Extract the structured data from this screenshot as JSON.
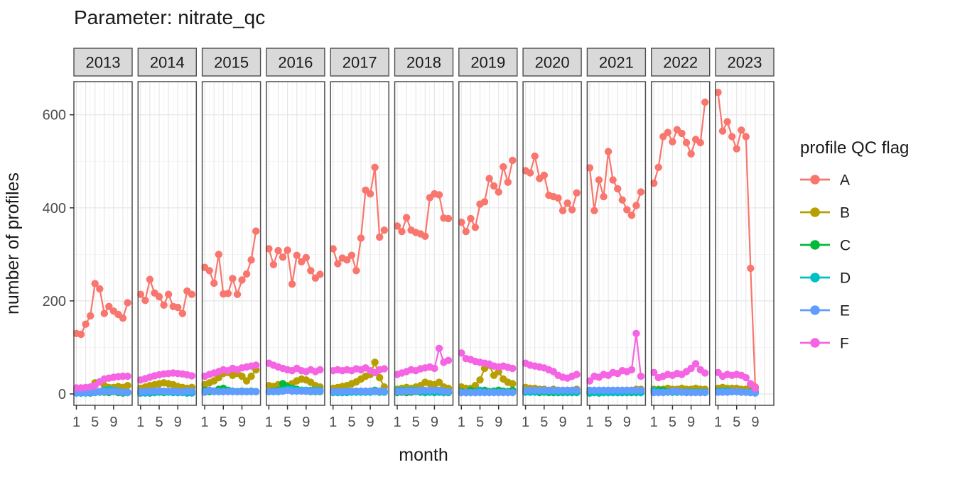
{
  "title": "Parameter:  nitrate_qc",
  "axes": {
    "y_label": "number of profiles",
    "x_label": "month",
    "y_tick_labels": [
      "0",
      "200",
      "400",
      "600"
    ],
    "x_tick_labels": [
      "1",
      "5",
      "9"
    ]
  },
  "legend": {
    "title": "profile QC flag",
    "entries": [
      {
        "label": "A",
        "color": "#F8766D"
      },
      {
        "label": "B",
        "color": "#B79F00"
      },
      {
        "label": "C",
        "color": "#00BA38"
      },
      {
        "label": "D",
        "color": "#00BFC4"
      },
      {
        "label": "E",
        "color": "#619CFF"
      },
      {
        "label": "F",
        "color": "#F564E3"
      }
    ]
  },
  "style_colors": {
    "strip_fill": "#D9D9D9",
    "panel_border": "#4D4D4D",
    "grid_major": "#E5E5E5",
    "grid_minor": "#F2F2F2",
    "tick_text": "#4D4D4D",
    "text": "#1A1A1A"
  },
  "chart_data": {
    "type": "line",
    "title": "Parameter:  nitrate_qc",
    "xlabel": "month",
    "ylabel": "number of profiles",
    "facet_by": "year",
    "facets": [
      "2013",
      "2014",
      "2015",
      "2016",
      "2017",
      "2018",
      "2019",
      "2020",
      "2021",
      "2022",
      "2023"
    ],
    "x_breaks": [
      1,
      5,
      9
    ],
    "y_breaks": [
      0,
      200,
      400,
      600
    ],
    "y_minor_breaks": [
      100,
      300,
      500
    ],
    "xlim": [
      1,
      12
    ],
    "ylim": [
      -20,
      672
    ],
    "grid": true,
    "legend_position": "right",
    "series": [
      {
        "name": "A",
        "color": "#F8766D",
        "data": {
          "2013": [
            130,
            128,
            150,
            168,
            237,
            226,
            173,
            188,
            178,
            171,
            163,
            196
          ],
          "2014": [
            214,
            201,
            246,
            217,
            209,
            191,
            214,
            188,
            186,
            173,
            221,
            214
          ],
          "2015": [
            272,
            265,
            238,
            300,
            215,
            216,
            248,
            214,
            245,
            258,
            288,
            350
          ],
          "2016": [
            312,
            278,
            308,
            294,
            309,
            236,
            298,
            284,
            293,
            265,
            249,
            257
          ],
          "2017": [
            312,
            280,
            292,
            288,
            298,
            265,
            335,
            438,
            430,
            487,
            337,
            352
          ],
          "2018": [
            361,
            349,
            379,
            352,
            347,
            344,
            339,
            422,
            430,
            428,
            378,
            377
          ],
          "2019": [
            369,
            349,
            377,
            358,
            408,
            413,
            463,
            447,
            434,
            488,
            455,
            502
          ],
          "2020": [
            480,
            475,
            511,
            463,
            470,
            427,
            424,
            421,
            394,
            410,
            396,
            432
          ],
          "2021": [
            486,
            394,
            460,
            424,
            521,
            460,
            441,
            417,
            396,
            384,
            405,
            434
          ],
          "2022": [
            453,
            487,
            553,
            562,
            542,
            568,
            560,
            540,
            516,
            547,
            540,
            627
          ],
          "2023": [
            648,
            565,
            585,
            553,
            527,
            567,
            553,
            270,
            15
          ]
        }
      },
      {
        "name": "B",
        "color": "#B79F00",
        "data": {
          "2013": [
            6,
            8,
            10,
            14,
            24,
            26,
            18,
            14,
            14,
            16,
            14,
            18
          ],
          "2014": [
            12,
            15,
            18,
            20,
            22,
            24,
            22,
            20,
            16,
            14,
            12,
            14
          ],
          "2015": [
            20,
            24,
            28,
            35,
            44,
            46,
            40,
            44,
            38,
            28,
            38,
            52
          ],
          "2016": [
            18,
            16,
            20,
            22,
            18,
            22,
            28,
            32,
            30,
            25,
            18,
            15
          ],
          "2017": [
            12,
            14,
            16,
            18,
            22,
            26,
            32,
            38,
            42,
            68,
            35,
            15
          ],
          "2018": [
            10,
            12,
            14,
            12,
            15,
            18,
            25,
            22,
            20,
            25,
            15,
            12
          ],
          "2019": [
            15,
            12,
            12,
            18,
            30,
            55,
            62,
            40,
            48,
            32,
            25,
            22
          ],
          "2020": [
            14,
            12,
            12,
            10,
            10,
            8,
            10,
            8,
            6,
            8,
            8,
            10
          ],
          "2021": [
            5,
            5,
            6,
            5,
            6,
            5,
            6,
            5,
            8,
            8,
            10,
            10
          ],
          "2022": [
            10,
            10,
            10,
            12,
            10,
            10,
            12,
            10,
            10,
            12,
            10,
            10
          ],
          "2023": [
            12,
            14,
            12,
            12,
            12,
            10,
            10,
            18,
            5
          ]
        }
      },
      {
        "name": "C",
        "color": "#00BA38",
        "data": {
          "2013": [
            3,
            2,
            3,
            2,
            4,
            5,
            4,
            3,
            5,
            3,
            2,
            3
          ],
          "2014": [
            2,
            3,
            2,
            3,
            4,
            3,
            5,
            5,
            3,
            4,
            2,
            3
          ],
          "2015": [
            8,
            5,
            6,
            10,
            12,
            8,
            6,
            5,
            6,
            5,
            6,
            5
          ],
          "2016": [
            5,
            6,
            8,
            22,
            15,
            12,
            10,
            8,
            6,
            5,
            5,
            5
          ],
          "2017": [
            5,
            4,
            5,
            5,
            5,
            5,
            5,
            5,
            5,
            8,
            5,
            5
          ],
          "2018": [
            3,
            4,
            3,
            4,
            5,
            4,
            3,
            4,
            3,
            4,
            3,
            3
          ],
          "2019": [
            5,
            3,
            8,
            5,
            6,
            8,
            5,
            6,
            8,
            6,
            5,
            8
          ],
          "2020": [
            5,
            4,
            5,
            3,
            4,
            3,
            3,
            3,
            3,
            3,
            3,
            3
          ],
          "2021": [
            2,
            3,
            2,
            3,
            3,
            3,
            3,
            3,
            3,
            3,
            3,
            3
          ],
          "2022": [
            5,
            8,
            8,
            5,
            4,
            4,
            4,
            4,
            4,
            4,
            4,
            4
          ],
          "2023": [
            6,
            5,
            6,
            5,
            5,
            4,
            4,
            4,
            3
          ]
        }
      },
      {
        "name": "D",
        "color": "#00BFC4",
        "data": {
          "2013": [
            2,
            2,
            2,
            3,
            3,
            4,
            8,
            9,
            8,
            6,
            4,
            3
          ],
          "2014": [
            2,
            2,
            3,
            3,
            4,
            4,
            4,
            3,
            3,
            3,
            2,
            2
          ],
          "2015": [
            5,
            8,
            6,
            5,
            5,
            6,
            5,
            5,
            5,
            5,
            5,
            5
          ],
          "2016": [
            5,
            5,
            5,
            8,
            10,
            10,
            8,
            8,
            8,
            8,
            8,
            8
          ],
          "2017": [
            3,
            3,
            3,
            3,
            4,
            4,
            4,
            4,
            4,
            5,
            4,
            4
          ],
          "2018": [
            8,
            8,
            8,
            8,
            8,
            5,
            4,
            4,
            4,
            4,
            4,
            4
          ],
          "2019": [
            3,
            3,
            3,
            3,
            8,
            4,
            4,
            4,
            4,
            4,
            4,
            4
          ],
          "2020": [
            4,
            4,
            4,
            5,
            5,
            5,
            5,
            4,
            4,
            4,
            4,
            4
          ],
          "2021": [
            3,
            3,
            3,
            3,
            3,
            3,
            3,
            3,
            3,
            5,
            4,
            3
          ],
          "2022": [
            8,
            4,
            4,
            4,
            4,
            4,
            4,
            4,
            4,
            4,
            4,
            4
          ],
          "2023": [
            5,
            6,
            5,
            5,
            5,
            4,
            4,
            3,
            3
          ]
        }
      },
      {
        "name": "E",
        "color": "#619CFF",
        "data": {
          "2013": [
            2,
            3,
            3,
            4,
            4,
            5,
            5,
            5,
            6,
            5,
            4,
            4
          ],
          "2014": [
            5,
            5,
            6,
            6,
            7,
            6,
            6,
            6,
            5,
            5,
            6,
            6
          ],
          "2015": [
            4,
            8,
            5,
            5,
            5,
            5,
            5,
            5,
            5,
            5,
            5,
            5
          ],
          "2016": [
            5,
            5,
            6,
            6,
            8,
            6,
            6,
            6,
            6,
            6,
            6,
            6
          ],
          "2017": [
            5,
            5,
            5,
            6,
            6,
            6,
            6,
            6,
            6,
            6,
            6,
            6
          ],
          "2018": [
            5,
            5,
            6,
            6,
            6,
            8,
            8,
            8,
            8,
            8,
            6,
            5
          ],
          "2019": [
            3,
            3,
            3,
            3,
            3,
            3,
            3,
            3,
            3,
            3,
            3,
            3
          ],
          "2020": [
            8,
            8,
            8,
            8,
            8,
            8,
            8,
            8,
            8,
            8,
            8,
            8
          ],
          "2021": [
            8,
            8,
            8,
            8,
            8,
            8,
            8,
            8,
            8,
            8,
            8,
            8
          ],
          "2022": [
            3,
            3,
            3,
            4,
            6,
            6,
            4,
            3,
            3,
            3,
            3,
            3
          ],
          "2023": [
            4,
            4,
            4,
            5,
            5,
            4,
            4,
            3,
            2
          ]
        }
      },
      {
        "name": "F",
        "color": "#F564E3",
        "data": {
          "2013": [
            13,
            13,
            14,
            15,
            18,
            26,
            32,
            34,
            36,
            37,
            38,
            38
          ],
          "2014": [
            30,
            33,
            36,
            39,
            41,
            43,
            44,
            45,
            44,
            43,
            41,
            39
          ],
          "2015": [
            38,
            42,
            45,
            48,
            52,
            50,
            55,
            52,
            56,
            58,
            60,
            62
          ],
          "2016": [
            66,
            62,
            58,
            55,
            52,
            50,
            55,
            50,
            48,
            52,
            48,
            52
          ],
          "2017": [
            50,
            52,
            50,
            52,
            50,
            54,
            52,
            56,
            50,
            46,
            52,
            54
          ],
          "2018": [
            42,
            45,
            48,
            52,
            50,
            54,
            56,
            58,
            55,
            98,
            68,
            72
          ],
          "2019": [
            88,
            76,
            74,
            70,
            68,
            66,
            64,
            60,
            58,
            60,
            57,
            55
          ],
          "2020": [
            66,
            62,
            60,
            58,
            56,
            52,
            48,
            40,
            36,
            34,
            38,
            42
          ],
          "2021": [
            28,
            38,
            36,
            42,
            40,
            46,
            44,
            50,
            48,
            52,
            130,
            38
          ],
          "2022": [
            46,
            35,
            38,
            42,
            40,
            44,
            42,
            48,
            55,
            65,
            52,
            45
          ],
          "2023": [
            46,
            38,
            42,
            40,
            42,
            40,
            35,
            22,
            12
          ]
        }
      }
    ]
  }
}
